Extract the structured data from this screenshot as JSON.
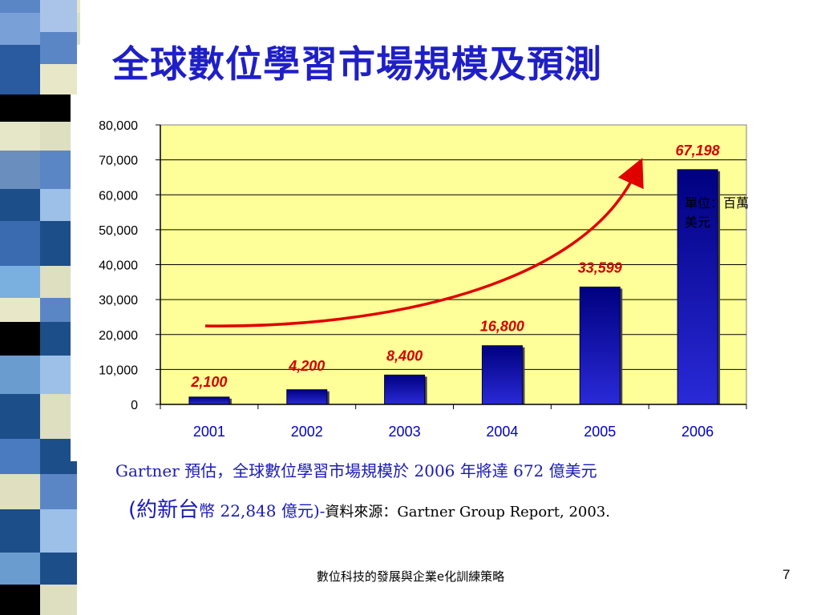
{
  "slide": {
    "title": "全球數位學習市場規模及預測",
    "unit_note": "單位：百萬美元",
    "caption": {
      "line1": "Gartner 預估，全球數位學習市場規模於 2006 年將達 672 億美元",
      "line2_part1": "(約新台",
      "line2_part2": "幣 22,848 億元)-",
      "line2_source": "資料來源：Gartner Group Report, 2003."
    },
    "footer": "數位科技的發展與企業e化訓練策略",
    "page_number": "7"
  },
  "colors": {
    "title": "#1f1fc8",
    "plot_bg": "#ffff99",
    "bar_dark": "#000080",
    "bar_light": "#2a2ad8",
    "value_label": "#d40000",
    "category_label": "#0000cc",
    "trend_arrow": "#e00000"
  },
  "chart_data": {
    "type": "bar",
    "categories": [
      "2001",
      "2002",
      "2003",
      "2004",
      "2005",
      "2006"
    ],
    "values": [
      2100,
      4200,
      8400,
      16800,
      33599,
      67198
    ],
    "data_labels": [
      "2,100",
      "4,200",
      "8,400",
      "16,800",
      "33,599",
      "67,198"
    ],
    "ylim": [
      0,
      80000
    ],
    "yticks": [
      "0",
      "10,000",
      "20,000",
      "30,000",
      "40,000",
      "50,000",
      "60,000",
      "70,000",
      "80,000"
    ],
    "grid": true,
    "legend": "none",
    "annotation": "red upward trend arrow"
  }
}
